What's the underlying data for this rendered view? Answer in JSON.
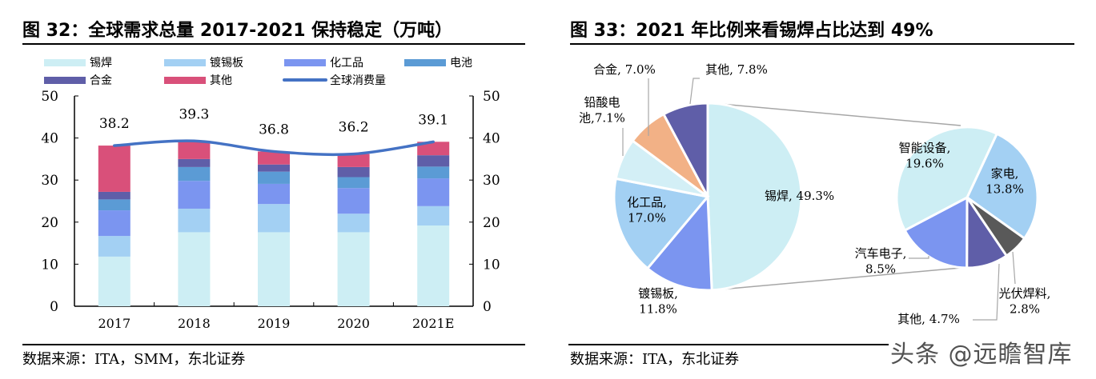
{
  "left": {
    "title": "图 32：全球需求总量 2017-2021 保持稳定（万吨）",
    "source": "数据来源：ITA，SMM，东北证券"
  },
  "right": {
    "title": "图 33：2021 年比例来看锡焊占比达到 49%",
    "source": "数据来源：ITA，东北证券"
  },
  "watermark": "头条 @远瞻智库",
  "chart_data": [
    {
      "type": "bar",
      "stacked": true,
      "title": "全球需求总量 2017-2021 保持稳定（万吨）",
      "categories": [
        "2017",
        "2018",
        "2019",
        "2020",
        "2021E"
      ],
      "ylim": [
        0,
        50
      ],
      "yticks": [
        0,
        10,
        20,
        30,
        40,
        50
      ],
      "series": [
        {
          "name": "锡焊",
          "color": "#cdeef4",
          "values": [
            11.8,
            17.6,
            17.6,
            17.6,
            19.2
          ]
        },
        {
          "name": "镀锡板",
          "color": "#a3d0f3",
          "values": [
            4.9,
            5.6,
            6.7,
            4.4,
            4.6
          ]
        },
        {
          "name": "化工品",
          "color": "#7b95f0",
          "values": [
            6.1,
            6.6,
            4.8,
            6.1,
            6.6
          ]
        },
        {
          "name": "电池",
          "color": "#5b9bd5",
          "values": [
            2.6,
            3.3,
            2.9,
            2.6,
            2.8
          ]
        },
        {
          "name": "合金",
          "color": "#5f5ea8",
          "values": [
            1.8,
            1.9,
            1.7,
            2.4,
            2.7
          ]
        },
        {
          "name": "其他",
          "color": "#d9507a",
          "values": [
            11.0,
            4.3,
            3.1,
            3.1,
            3.2
          ]
        }
      ],
      "line": {
        "name": "全球消费量",
        "color": "#4472c4",
        "values": [
          38.2,
          39.3,
          36.8,
          36.2,
          39.1
        ]
      },
      "data_labels": [
        "38.2",
        "39.3",
        "36.8",
        "36.2",
        "39.1"
      ],
      "legend": "top"
    },
    {
      "type": "pie",
      "title": "2021 年比例来看锡焊占比达到 49%",
      "main": [
        {
          "label": "锡焊, 49.3%",
          "value": 49.3,
          "color": "#cdeef4"
        },
        {
          "label": "镀锡板,\n11.8%",
          "value": 11.8,
          "color": "#7b95f0"
        },
        {
          "label": "化工品,\n17.0%",
          "value": 17.0,
          "color": "#a3d0f3"
        },
        {
          "label": "铅酸电\n池,7.1%",
          "value": 7.1,
          "color": "#d3eff6"
        },
        {
          "label": "合金, 7.0%",
          "value": 7.0,
          "color": "#f2b186"
        },
        {
          "label": "其他, 7.8%",
          "value": 7.8,
          "color": "#5f5ea8"
        }
      ],
      "breakdown_of": "锡焊",
      "breakdown": [
        {
          "label": "家电,\n13.8%",
          "value": 13.8,
          "color": "#a3d0f3"
        },
        {
          "label": "光伏焊料,\n2.8%",
          "value": 2.8,
          "color": "#595959"
        },
        {
          "label": "其他, 4.7%",
          "value": 4.7,
          "color": "#5f5ea8"
        },
        {
          "label": "汽车电子,\n8.5%",
          "value": 8.5,
          "color": "#7b95f0"
        },
        {
          "label": "智能设备,\n19.6%",
          "value": 19.6,
          "color": "#cdeef4"
        }
      ]
    }
  ]
}
